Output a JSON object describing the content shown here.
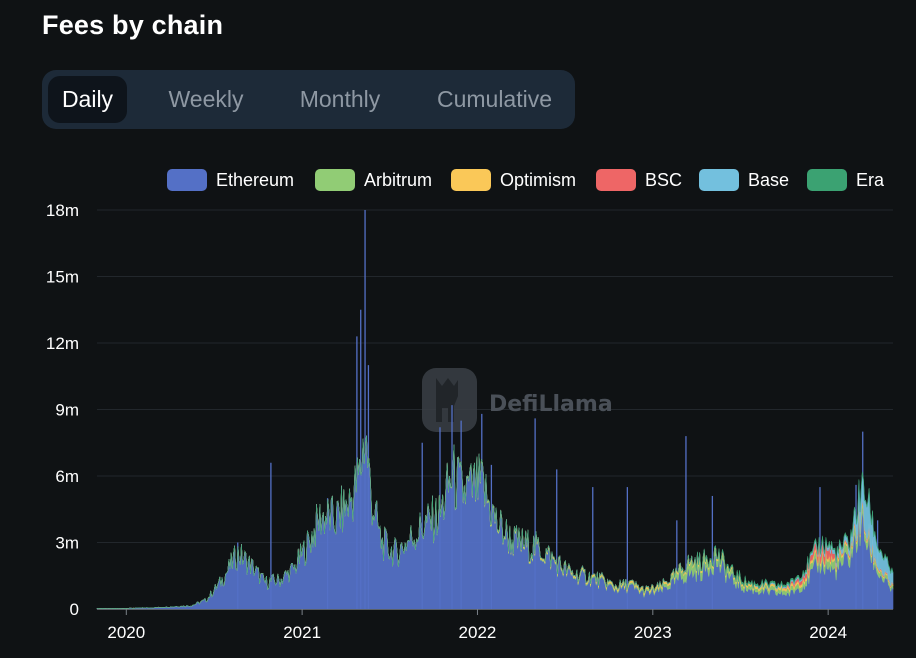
{
  "header": {
    "title": "Fees by chain"
  },
  "tabs": [
    {
      "label": "Daily",
      "active": true
    },
    {
      "label": "Weekly",
      "active": false
    },
    {
      "label": "Monthly",
      "active": false
    },
    {
      "label": "Cumulative",
      "active": false
    }
  ],
  "watermark": {
    "text": "DefiLlama"
  },
  "chart_data": {
    "type": "area",
    "stacked": true,
    "title": "Fees by chain",
    "ylim": [
      0,
      18000000
    ],
    "yticks": [
      {
        "value": 0,
        "label": "0"
      },
      {
        "value": 3000000,
        "label": "3m"
      },
      {
        "value": 6000000,
        "label": "6m"
      },
      {
        "value": 9000000,
        "label": "9m"
      },
      {
        "value": 12000000,
        "label": "12m"
      },
      {
        "value": 15000000,
        "label": "15m"
      },
      {
        "value": 18000000,
        "label": "18m"
      }
    ],
    "xlim": [
      "2019-11-01",
      "2024-05-15"
    ],
    "xticks": [
      {
        "value": "2020-01-01",
        "label": "2020"
      },
      {
        "value": "2021-01-01",
        "label": "2021"
      },
      {
        "value": "2022-01-01",
        "label": "2022"
      },
      {
        "value": "2023-01-01",
        "label": "2023"
      },
      {
        "value": "2024-01-01",
        "label": "2024"
      }
    ],
    "grid": true,
    "legend_position": "top-right",
    "series": [
      {
        "name": "Ethereum",
        "color": "#5470c6",
        "points": [
          [
            "2019-11-01",
            20000
          ],
          [
            "2020-01-01",
            30000
          ],
          [
            "2020-03-01",
            60000
          ],
          [
            "2020-05-15",
            150000
          ],
          [
            "2020-06-15",
            400000
          ],
          [
            "2020-07-15",
            1200000
          ],
          [
            "2020-08-01",
            1800000
          ],
          [
            "2020-08-20",
            2500000
          ],
          [
            "2020-09-15",
            2000000
          ],
          [
            "2020-10-15",
            1200000
          ],
          [
            "2020-11-15",
            1300000
          ],
          [
            "2020-12-15",
            1800000
          ],
          [
            "2021-01-15",
            3000000
          ],
          [
            "2021-02-10",
            4200000
          ],
          [
            "2021-03-10",
            4000000
          ],
          [
            "2021-04-10",
            4800000
          ],
          [
            "2021-05-01",
            6000000
          ],
          [
            "2021-05-12",
            8000000
          ],
          [
            "2021-05-25",
            5000000
          ],
          [
            "2021-06-15",
            3000000
          ],
          [
            "2021-07-15",
            2500000
          ],
          [
            "2021-08-15",
            3200000
          ],
          [
            "2021-09-15",
            3800000
          ],
          [
            "2021-10-15",
            4200000
          ],
          [
            "2021-11-10",
            6000000
          ],
          [
            "2021-12-01",
            5200000
          ],
          [
            "2022-01-10",
            5500000
          ],
          [
            "2022-02-10",
            3800000
          ],
          [
            "2022-03-15",
            3000000
          ],
          [
            "2022-04-15",
            2800000
          ],
          [
            "2022-05-15",
            2600000
          ],
          [
            "2022-06-15",
            2000000
          ],
          [
            "2022-07-15",
            1500000
          ],
          [
            "2022-08-15",
            1400000
          ],
          [
            "2022-09-15",
            1200000
          ],
          [
            "2022-10-15",
            900000
          ],
          [
            "2022-11-15",
            1000000
          ],
          [
            "2022-12-15",
            700000
          ],
          [
            "2023-01-15",
            800000
          ],
          [
            "2023-02-15",
            1200000
          ],
          [
            "2023-03-15",
            1600000
          ],
          [
            "2023-04-15",
            1700000
          ],
          [
            "2023-05-10",
            2200000
          ],
          [
            "2023-06-15",
            1300000
          ],
          [
            "2023-07-15",
            900000
          ],
          [
            "2023-08-15",
            800000
          ],
          [
            "2023-09-15",
            700000
          ],
          [
            "2023-10-15",
            700000
          ],
          [
            "2023-11-15",
            1200000
          ],
          [
            "2023-12-15",
            2100000
          ],
          [
            "2024-01-15",
            1700000
          ],
          [
            "2024-02-15",
            2300000
          ],
          [
            "2024-03-10",
            3800000
          ],
          [
            "2024-03-25",
            2800000
          ],
          [
            "2024-04-15",
            1600000
          ],
          [
            "2024-05-15",
            800000
          ]
        ],
        "spikes": [
          [
            "2020-08-20",
            3000000
          ],
          [
            "2020-10-28",
            6600000
          ],
          [
            "2021-02-23",
            5000000
          ],
          [
            "2021-04-25",
            12300000
          ],
          [
            "2021-05-03",
            13500000
          ],
          [
            "2021-05-12",
            18000000
          ],
          [
            "2021-05-19",
            11000000
          ],
          [
            "2021-09-08",
            7500000
          ],
          [
            "2021-10-15",
            8200000
          ],
          [
            "2021-11-09",
            9200000
          ],
          [
            "2021-11-28",
            8500000
          ],
          [
            "2022-01-10",
            8800000
          ],
          [
            "2022-01-30",
            6500000
          ],
          [
            "2022-05-01",
            8600000
          ],
          [
            "2022-06-15",
            6300000
          ],
          [
            "2022-08-29",
            5500000
          ],
          [
            "2022-11-09",
            5500000
          ],
          [
            "2023-02-20",
            4000000
          ],
          [
            "2023-03-11",
            7800000
          ],
          [
            "2023-05-05",
            5100000
          ],
          [
            "2023-12-15",
            5500000
          ],
          [
            "2024-02-28",
            5600000
          ],
          [
            "2024-03-13",
            8000000
          ],
          [
            "2024-04-13",
            4000000
          ]
        ]
      },
      {
        "name": "Arbitrum",
        "color": "#91cc75",
        "points": [
          [
            "2021-09-01",
            30000
          ],
          [
            "2022-01-01",
            60000
          ],
          [
            "2022-06-01",
            50000
          ],
          [
            "2023-01-01",
            80000
          ],
          [
            "2023-02-15",
            200000
          ],
          [
            "2023-03-20",
            450000
          ],
          [
            "2023-05-01",
            300000
          ],
          [
            "2023-08-01",
            150000
          ],
          [
            "2023-11-01",
            200000
          ],
          [
            "2024-01-01",
            350000
          ],
          [
            "2024-03-10",
            400000
          ],
          [
            "2024-04-01",
            250000
          ],
          [
            "2024-05-15",
            150000
          ]
        ]
      },
      {
        "name": "Optimism",
        "color": "#fac858",
        "points": [
          [
            "2021-12-01",
            15000
          ],
          [
            "2022-06-01",
            60000
          ],
          [
            "2022-10-01",
            80000
          ],
          [
            "2023-01-01",
            100000
          ],
          [
            "2023-06-01",
            80000
          ],
          [
            "2023-12-01",
            120000
          ],
          [
            "2024-03-15",
            80000
          ],
          [
            "2024-05-15",
            40000
          ]
        ]
      },
      {
        "name": "BSC",
        "color": "#ee6666",
        "points": [
          [
            "2023-10-01",
            20000
          ],
          [
            "2023-12-25",
            350000
          ],
          [
            "2024-01-05",
            400000
          ],
          [
            "2024-01-20",
            60000
          ],
          [
            "2024-05-15",
            40000
          ]
        ]
      },
      {
        "name": "Base",
        "color": "#73c0de",
        "points": [
          [
            "2023-08-01",
            30000
          ],
          [
            "2023-12-01",
            80000
          ],
          [
            "2024-02-15",
            250000
          ],
          [
            "2024-03-25",
            1600000
          ],
          [
            "2024-04-10",
            900000
          ],
          [
            "2024-05-15",
            500000
          ]
        ]
      },
      {
        "name": "Era",
        "color": "#3ba272",
        "points": [
          [
            "2023-04-01",
            40000
          ],
          [
            "2023-07-01",
            70000
          ],
          [
            "2024-01-01",
            60000
          ],
          [
            "2024-05-15",
            40000
          ]
        ]
      }
    ]
  }
}
